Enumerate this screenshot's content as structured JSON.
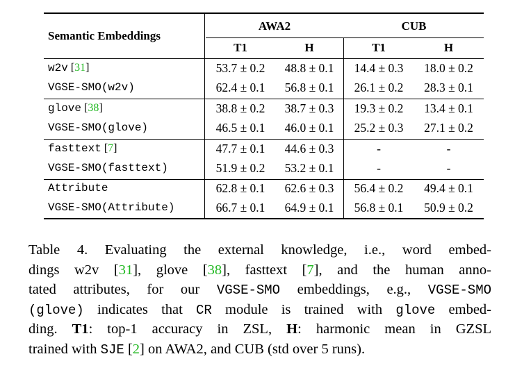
{
  "table": {
    "header": {
      "semantic_col": "Semantic Embeddings",
      "groups": [
        "AWA2",
        "CUB"
      ],
      "sub": [
        "T1",
        "H",
        "T1",
        "H"
      ]
    },
    "rows": [
      {
        "name": "w2v",
        "cite": "31",
        "vals": [
          "53.7 ± 0.2",
          "48.8 ± 0.1",
          "14.4 ± 0.3",
          "18.0 ± 0.2"
        ]
      },
      {
        "name": "VGSE-SMO(w2v)",
        "cite": "",
        "vals": [
          "62.4 ± 0.1",
          "56.8 ± 0.1",
          "26.1 ± 0.2",
          "28.3 ± 0.1"
        ]
      },
      {
        "name": "glove",
        "cite": "38",
        "vals": [
          "38.8 ± 0.2",
          "38.7 ± 0.3",
          "19.3 ± 0.2",
          "13.4 ± 0.1"
        ]
      },
      {
        "name": "VGSE-SMO(glove)",
        "cite": "",
        "vals": [
          "46.5 ± 0.1",
          "46.0 ± 0.1",
          "25.2 ± 0.3",
          "27.1 ± 0.2"
        ]
      },
      {
        "name": "fasttext",
        "cite": "7",
        "vals": [
          "47.7 ± 0.1",
          "44.6 ± 0.3",
          "-",
          "-"
        ]
      },
      {
        "name": "VGSE-SMO(fasttext)",
        "cite": "",
        "vals": [
          "51.9 ± 0.2",
          "53.2 ± 0.1",
          "-",
          "-"
        ]
      },
      {
        "name": "Attribute",
        "cite": "",
        "vals": [
          "62.8 ± 0.1",
          "62.6 ± 0.3",
          "56.4 ± 0.2",
          "49.4 ± 0.1"
        ]
      },
      {
        "name": "VGSE-SMO(Attribute)",
        "cite": "",
        "vals": [
          "66.7 ± 0.1",
          "64.9 ± 0.1",
          "56.8 ± 0.1",
          "50.9 ± 0.2"
        ]
      }
    ]
  },
  "caption": {
    "l1": "Table 4.  Evaluating the external knowledge, i.e., word embed-",
    "l2a": "dings w2v [",
    "l2c1": "31",
    "l2b": "], glove [",
    "l2c2": "38",
    "l2c": "], fasttext [",
    "l2c3": "7",
    "l2d": "], and the human anno-",
    "l3a": "tated attributes, for our ",
    "l3m1": "VGSE-SMO",
    "l3b": " embeddings, e.g., ",
    "l3m2": "VGSE-SMO",
    "l4m1": "(glove)",
    "l4a": " indicates that ",
    "l4m2": "CR",
    "l4b": " module is trained with ",
    "l4m3": "glove",
    "l4c": " embed-",
    "l5a": "ding.  ",
    "l5b1": "T1",
    "l5b": ": top-1 accuracy in ZSL, ",
    "l5b2": "H",
    "l5c": ": harmonic mean in GZSL",
    "l6a": "trained with ",
    "l6m": "SJE",
    "l6b": " [",
    "l6c": "2",
    "l6d": "] on AWA2, and CUB (std over 5 runs)."
  }
}
